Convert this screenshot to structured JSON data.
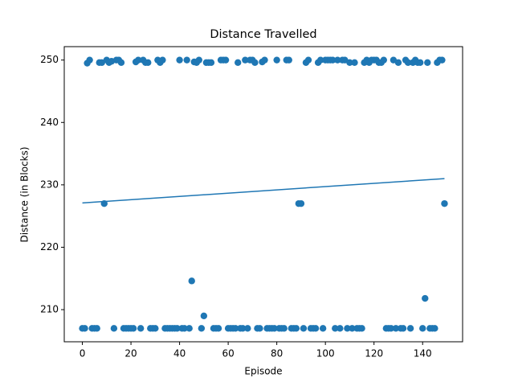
{
  "chart_data": {
    "type": "scatter",
    "title": "Distance Travelled",
    "x_label": "Episode",
    "y_label": "Distance (in Blocks)",
    "color": "#1f77b4",
    "x": [
      0,
      1,
      2,
      3,
      4,
      5,
      6,
      7,
      8,
      9,
      10,
      11,
      12,
      13,
      14,
      15,
      16,
      17,
      18,
      19,
      20,
      21,
      22,
      23,
      24,
      25,
      26,
      27,
      28,
      29,
      30,
      31,
      32,
      33,
      34,
      35,
      36,
      37,
      38,
      39,
      40,
      41,
      42,
      43,
      44,
      45,
      46,
      47,
      48,
      49,
      50,
      51,
      52,
      53,
      54,
      55,
      56,
      57,
      58,
      59,
      60,
      61,
      62,
      63,
      64,
      65,
      66,
      67,
      68,
      69,
      70,
      71,
      72,
      73,
      74,
      75,
      76,
      77,
      78,
      79,
      80,
      81,
      82,
      83,
      84,
      85,
      86,
      87,
      88,
      89,
      90,
      91,
      92,
      93,
      94,
      95,
      96,
      97,
      98,
      99,
      100,
      101,
      102,
      103,
      104,
      105,
      106,
      107,
      108,
      109,
      110,
      111,
      112,
      113,
      114,
      115,
      116,
      117,
      118,
      119,
      120,
      121,
      122,
      123,
      124,
      125,
      126,
      127,
      128,
      129,
      130,
      131,
      132,
      133,
      134,
      135,
      136,
      137,
      138,
      139,
      140,
      141,
      142,
      143,
      144,
      145,
      146,
      147,
      148,
      149
    ],
    "values": [
      207,
      207,
      249.5,
      250,
      207,
      207,
      207,
      249.6,
      249.6,
      227,
      250,
      249.6,
      249.8,
      207,
      250,
      250,
      249.6,
      207,
      207,
      207,
      207,
      207,
      249.7,
      250,
      207,
      250,
      249.6,
      249.6,
      207,
      207,
      207,
      250,
      249.6,
      250,
      207,
      207,
      207,
      207,
      207,
      207,
      250,
      207,
      207,
      250,
      207,
      214.6,
      249.7,
      249.6,
      250,
      207,
      209,
      249.6,
      249.6,
      249.6,
      207,
      207,
      207,
      250,
      250,
      250,
      207,
      207,
      207,
      207,
      249.6,
      207,
      207,
      250,
      207,
      250,
      250,
      249.6,
      207,
      207,
      249.7,
      250,
      207,
      207,
      207,
      207,
      250,
      207,
      207,
      207,
      250,
      250,
      207,
      207,
      207,
      227,
      227,
      207,
      249.6,
      250,
      207,
      207,
      207,
      249.6,
      250,
      207,
      250,
      250,
      250,
      250,
      207,
      250,
      207,
      250,
      250,
      207,
      249.6,
      207,
      249.6,
      207,
      207,
      207,
      249.6,
      250,
      249.6,
      250,
      250,
      250,
      249.6,
      249.6,
      250,
      207,
      207,
      207,
      250,
      207,
      249.6,
      207,
      207,
      250,
      249.6,
      207,
      249.6,
      250,
      249.6,
      249.6,
      207,
      211.8,
      249.6,
      207,
      207,
      207,
      249.6,
      250,
      250,
      227
    ],
    "trend": {
      "x": [
        0,
        149
      ],
      "y": [
        227.1,
        231.0
      ]
    },
    "xlim": [
      -7.45,
      156.45
    ],
    "ylim": [
      204.85,
      252.15
    ],
    "xticks": [
      0,
      20,
      40,
      60,
      80,
      100,
      120,
      140
    ],
    "yticks": [
      210,
      220,
      230,
      240,
      250
    ]
  }
}
